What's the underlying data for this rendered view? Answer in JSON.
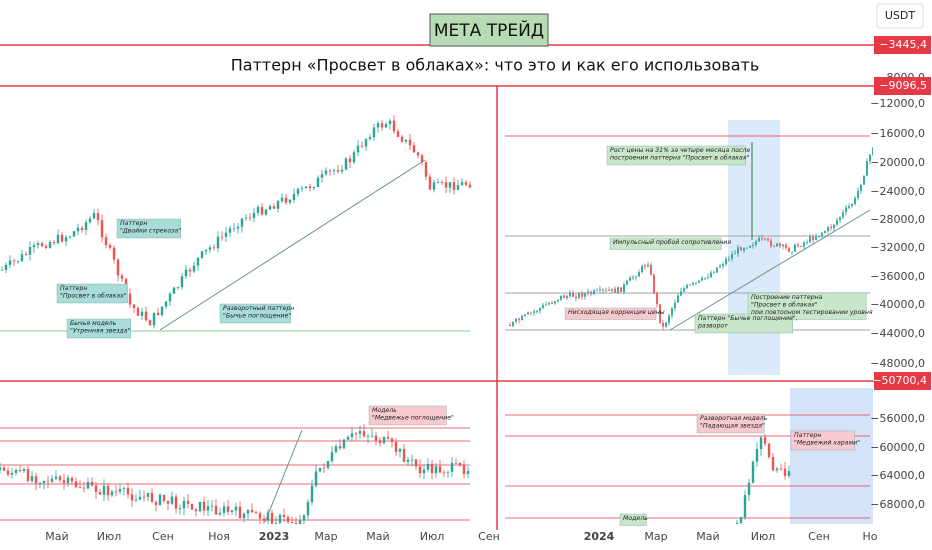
{
  "header": {
    "logo": "МЕТА ТРЕЙД",
    "currency": "USDT",
    "title": "Паттерн «Просвет в облаках»: что это и как его использовать"
  },
  "price_labels": [
    "−3445,4",
    "−9096,5",
    "−50700,4"
  ],
  "price_axis": [
    "−8000,0",
    "−12000,0",
    "−16000,0",
    "−20000,0",
    "−24000,0",
    "−28000,0",
    "−32000,0",
    "−36000,0",
    "−40000,0",
    "−44000,0",
    "−48000,0",
    "−56000,0",
    "−60000,0",
    "−64000,0",
    "−68000,0"
  ],
  "time_axis": [
    "Май",
    "Июл",
    "Сен",
    "Ноя",
    "2023",
    "Мар",
    "Май",
    "Июл",
    "Сен",
    "2024",
    "Мар",
    "Май",
    "Июл",
    "Сен",
    "Но"
  ],
  "panels": [
    {
      "annotations": [
        [
          "Паттерн",
          "\"Двойки стрекоза\""
        ],
        [
          "Паттерн",
          "\"Просвет в облаках\""
        ],
        [
          "Бычья модель",
          "\"Утренняя звезда\""
        ],
        [
          "Разворотный паттерн",
          "\"Бычье поглощение\""
        ]
      ]
    },
    {
      "annotations": [
        [
          "Рост цены на 31% за четыре месяца после",
          "построения паттерна \"Просвет в облаках\""
        ],
        [
          "Импульсный пробой сопротивления"
        ],
        [
          "Нисходящая коррекция цены"
        ],
        [
          "Построение паттерна",
          "\"Просвет в облаках\"",
          "при повторном тестировании уровня"
        ],
        [
          "Паттерн \"Бычье поглощение\",",
          "разворот"
        ]
      ]
    },
    {
      "annotations": [
        [
          "Модель",
          "\"Медвежье поглощение\""
        ]
      ]
    },
    {
      "annotations": [
        [
          "Разворотная модель",
          "\"Падающая звезда\""
        ],
        [
          "Паттерн",
          "\"Медвежий харами\""
        ],
        [
          "Модель"
        ]
      ]
    }
  ]
}
